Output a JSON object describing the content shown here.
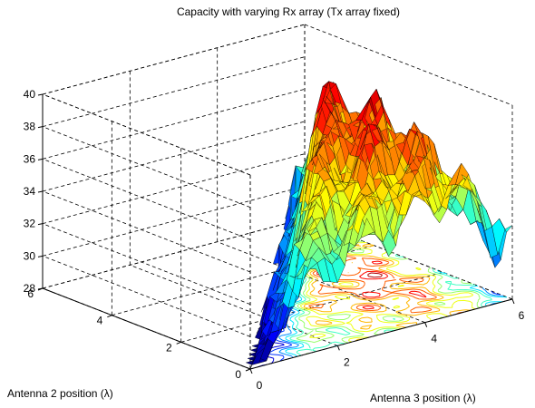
{
  "chart_data": {
    "type": "surface",
    "title": "Capacity with varying Rx array (Tx array fixed)",
    "xlabel": "Antenna 3 position (λ)",
    "ylabel": "Antenna 2 position (λ)",
    "zlabel": "",
    "xlim": [
      0,
      6
    ],
    "ylim": [
      0,
      6
    ],
    "zlim": [
      28,
      40
    ],
    "x_ticks": [
      "0",
      "2",
      "4",
      "6"
    ],
    "y_ticks": [
      "0",
      "2",
      "4",
      "6"
    ],
    "z_ticks": [
      "28",
      "30",
      "32",
      "34",
      "36",
      "38",
      "40"
    ],
    "grid": true,
    "colormap": "jet",
    "contour_projection": "base plane",
    "domain": "triangular region where Antenna 3 position ≥ Antenna 2 position",
    "z_range_observed": [
      28,
      39.5
    ],
    "surface_samples": {
      "x_values": [
        0,
        1,
        2,
        3,
        4,
        5,
        6
      ],
      "y_values": [
        0,
        1,
        2,
        3,
        4,
        5,
        6
      ],
      "z_rows": [
        [
          30.0,
          32.1,
          33.4,
          34.6,
          35.2,
          35.6,
          31.0
        ],
        [
          null,
          31.2,
          33.8,
          35.0,
          35.9,
          36.2,
          32.0
        ],
        [
          null,
          null,
          32.6,
          35.4,
          36.8,
          37.3,
          33.2
        ],
        [
          null,
          null,
          null,
          33.2,
          36.5,
          37.8,
          34.0
        ],
        [
          null,
          null,
          null,
          null,
          34.8,
          37.5,
          34.5
        ],
        [
          null,
          null,
          null,
          null,
          null,
          36.4,
          35.5
        ],
        [
          null,
          null,
          null,
          null,
          null,
          null,
          34.0
        ]
      ]
    }
  }
}
